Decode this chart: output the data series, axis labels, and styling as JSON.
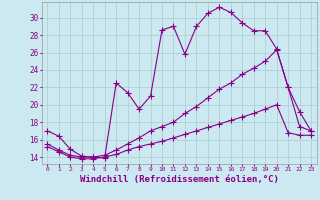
{
  "bg_color": "#cce8f0",
  "grid_color": "#aacccc",
  "line_color": "#880088",
  "marker": "+",
  "markersize": 4.0,
  "linewidth": 0.8,
  "xlabel": "Windchill (Refroidissement éolien,°C)",
  "xlabel_fontsize": 6.5,
  "xtick_labels": [
    "0",
    "1",
    "2",
    "3",
    "4",
    "5",
    "6",
    "7",
    "8",
    "9",
    "10",
    "11",
    "12",
    "13",
    "14",
    "15",
    "16",
    "17",
    "18",
    "19",
    "20",
    "21",
    "22",
    "23"
  ],
  "ytick_labels": [
    "14",
    "16",
    "18",
    "20",
    "22",
    "24",
    "26",
    "28",
    "30"
  ],
  "yticks": [
    14,
    16,
    18,
    20,
    22,
    24,
    26,
    28,
    30
  ],
  "xlim": [
    -0.5,
    23.5
  ],
  "ylim": [
    13.2,
    31.8
  ],
  "series1_x": [
    0,
    1,
    2,
    3,
    4,
    5,
    6,
    7,
    8,
    9,
    10,
    11,
    12,
    13,
    14,
    15,
    16,
    17,
    18,
    19,
    20,
    21,
    22,
    23
  ],
  "series1_y": [
    17.0,
    16.4,
    14.9,
    14.1,
    14.0,
    13.9,
    22.5,
    21.4,
    19.5,
    21.0,
    28.6,
    29.0,
    25.8,
    29.0,
    30.5,
    31.2,
    30.6,
    29.4,
    28.5,
    28.5,
    26.4,
    22.0,
    17.5,
    17.0
  ],
  "series2_x": [
    0,
    1,
    2,
    3,
    4,
    5,
    6,
    7,
    8,
    9,
    10,
    11,
    12,
    13,
    14,
    15,
    16,
    17,
    18,
    19,
    20,
    21,
    22,
    23
  ],
  "series2_y": [
    15.5,
    14.8,
    14.2,
    14.0,
    14.0,
    14.2,
    14.8,
    15.5,
    16.2,
    17.0,
    17.5,
    18.0,
    19.0,
    19.8,
    20.8,
    21.8,
    22.5,
    23.5,
    24.2,
    25.0,
    26.3,
    22.0,
    19.2,
    17.0
  ],
  "series3_x": [
    0,
    1,
    2,
    3,
    4,
    5,
    6,
    7,
    8,
    9,
    10,
    11,
    12,
    13,
    14,
    15,
    16,
    17,
    18,
    19,
    20,
    21,
    22,
    23
  ],
  "series3_y": [
    15.2,
    14.6,
    14.0,
    13.8,
    13.8,
    14.0,
    14.3,
    14.8,
    15.2,
    15.5,
    15.8,
    16.2,
    16.6,
    17.0,
    17.4,
    17.8,
    18.2,
    18.6,
    19.0,
    19.5,
    20.0,
    16.8,
    16.5,
    16.5
  ]
}
